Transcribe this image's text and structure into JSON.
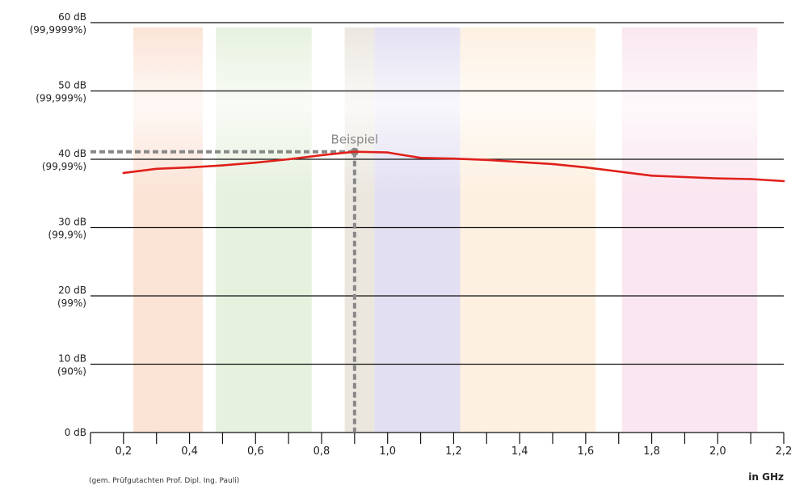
{
  "chart_data": {
    "type": "line",
    "xlabel": "in GHz",
    "ylabel": "",
    "xlim": [
      0.1,
      2.2
    ],
    "ylim": [
      0,
      60
    ],
    "grid": true,
    "x_ticks": [
      0.2,
      0.3,
      0.4,
      0.5,
      0.6,
      0.7,
      0.8,
      0.9,
      1.0,
      1.1,
      1.2,
      1.3,
      1.4,
      1.5,
      1.6,
      1.7,
      1.8,
      1.9,
      2.0,
      2.1,
      2.2
    ],
    "x_tick_labels": [
      {
        "value": 0.2,
        "text": "0,2"
      },
      {
        "value": 0.4,
        "text": "0,4"
      },
      {
        "value": 0.6,
        "text": "0,6"
      },
      {
        "value": 0.8,
        "text": "0,8"
      },
      {
        "value": 1.0,
        "text": "1,0"
      },
      {
        "value": 1.2,
        "text": "1,2"
      },
      {
        "value": 1.4,
        "text": "1,4"
      },
      {
        "value": 1.6,
        "text": "1,6"
      },
      {
        "value": 1.8,
        "text": "1,8"
      },
      {
        "value": 2.0,
        "text": "2,0"
      },
      {
        "value": 2.2,
        "text": "2,2"
      }
    ],
    "y_tick_labels": [
      {
        "value": 0,
        "line1": "0 dB",
        "line2": ""
      },
      {
        "value": 10,
        "line1": "10 dB",
        "line2": "(90%)"
      },
      {
        "value": 20,
        "line1": "20 dB",
        "line2": "(99%)"
      },
      {
        "value": 30,
        "line1": "30 dB",
        "line2": "(99,9%)"
      },
      {
        "value": 40,
        "line1": "40 dB",
        "line2": "(99,99%)"
      },
      {
        "value": 50,
        "line1": "50 dB",
        "line2": "(99,999%)"
      },
      {
        "value": 60,
        "line1": "60 dB",
        "line2": "(99,9999%)"
      }
    ],
    "series": [
      {
        "color": "#e0201a",
        "x": [
          0.2,
          0.3,
          0.4,
          0.5,
          0.6,
          0.7,
          0.8,
          0.9,
          1.0,
          1.1,
          1.2,
          1.3,
          1.4,
          1.5,
          1.6,
          1.7,
          1.8,
          1.9,
          2.0,
          2.1,
          2.2
        ],
        "y": [
          38.0,
          38.6,
          38.8,
          39.1,
          39.5,
          40.0,
          40.6,
          41.1,
          41.0,
          40.2,
          40.1,
          39.9,
          39.6,
          39.3,
          38.8,
          38.2,
          37.6,
          37.4,
          37.2,
          37.1,
          36.8
        ]
      }
    ],
    "bands": [
      {
        "from": 0.23,
        "to": 0.44,
        "color": "#fbe3d6"
      },
      {
        "from": 0.48,
        "to": 0.77,
        "color": "#e6f1de"
      },
      {
        "from": 0.87,
        "to": 0.96,
        "color": "#ebe7df"
      },
      {
        "from": 0.96,
        "to": 1.22,
        "color": "#e2dff2"
      },
      {
        "from": 1.22,
        "to": 1.63,
        "color": "#fdf0e0"
      },
      {
        "from": 1.71,
        "to": 2.12,
        "color": "#fae6f0"
      }
    ],
    "annotations": [
      {
        "text": "Beispiel",
        "x": 0.9,
        "y": 41.1,
        "color": "#888888"
      }
    ]
  },
  "footer": {
    "source": "(gem. Prüfgutachten Prof. Dipl. Ing. Pauli)",
    "unit": "in GHz"
  }
}
